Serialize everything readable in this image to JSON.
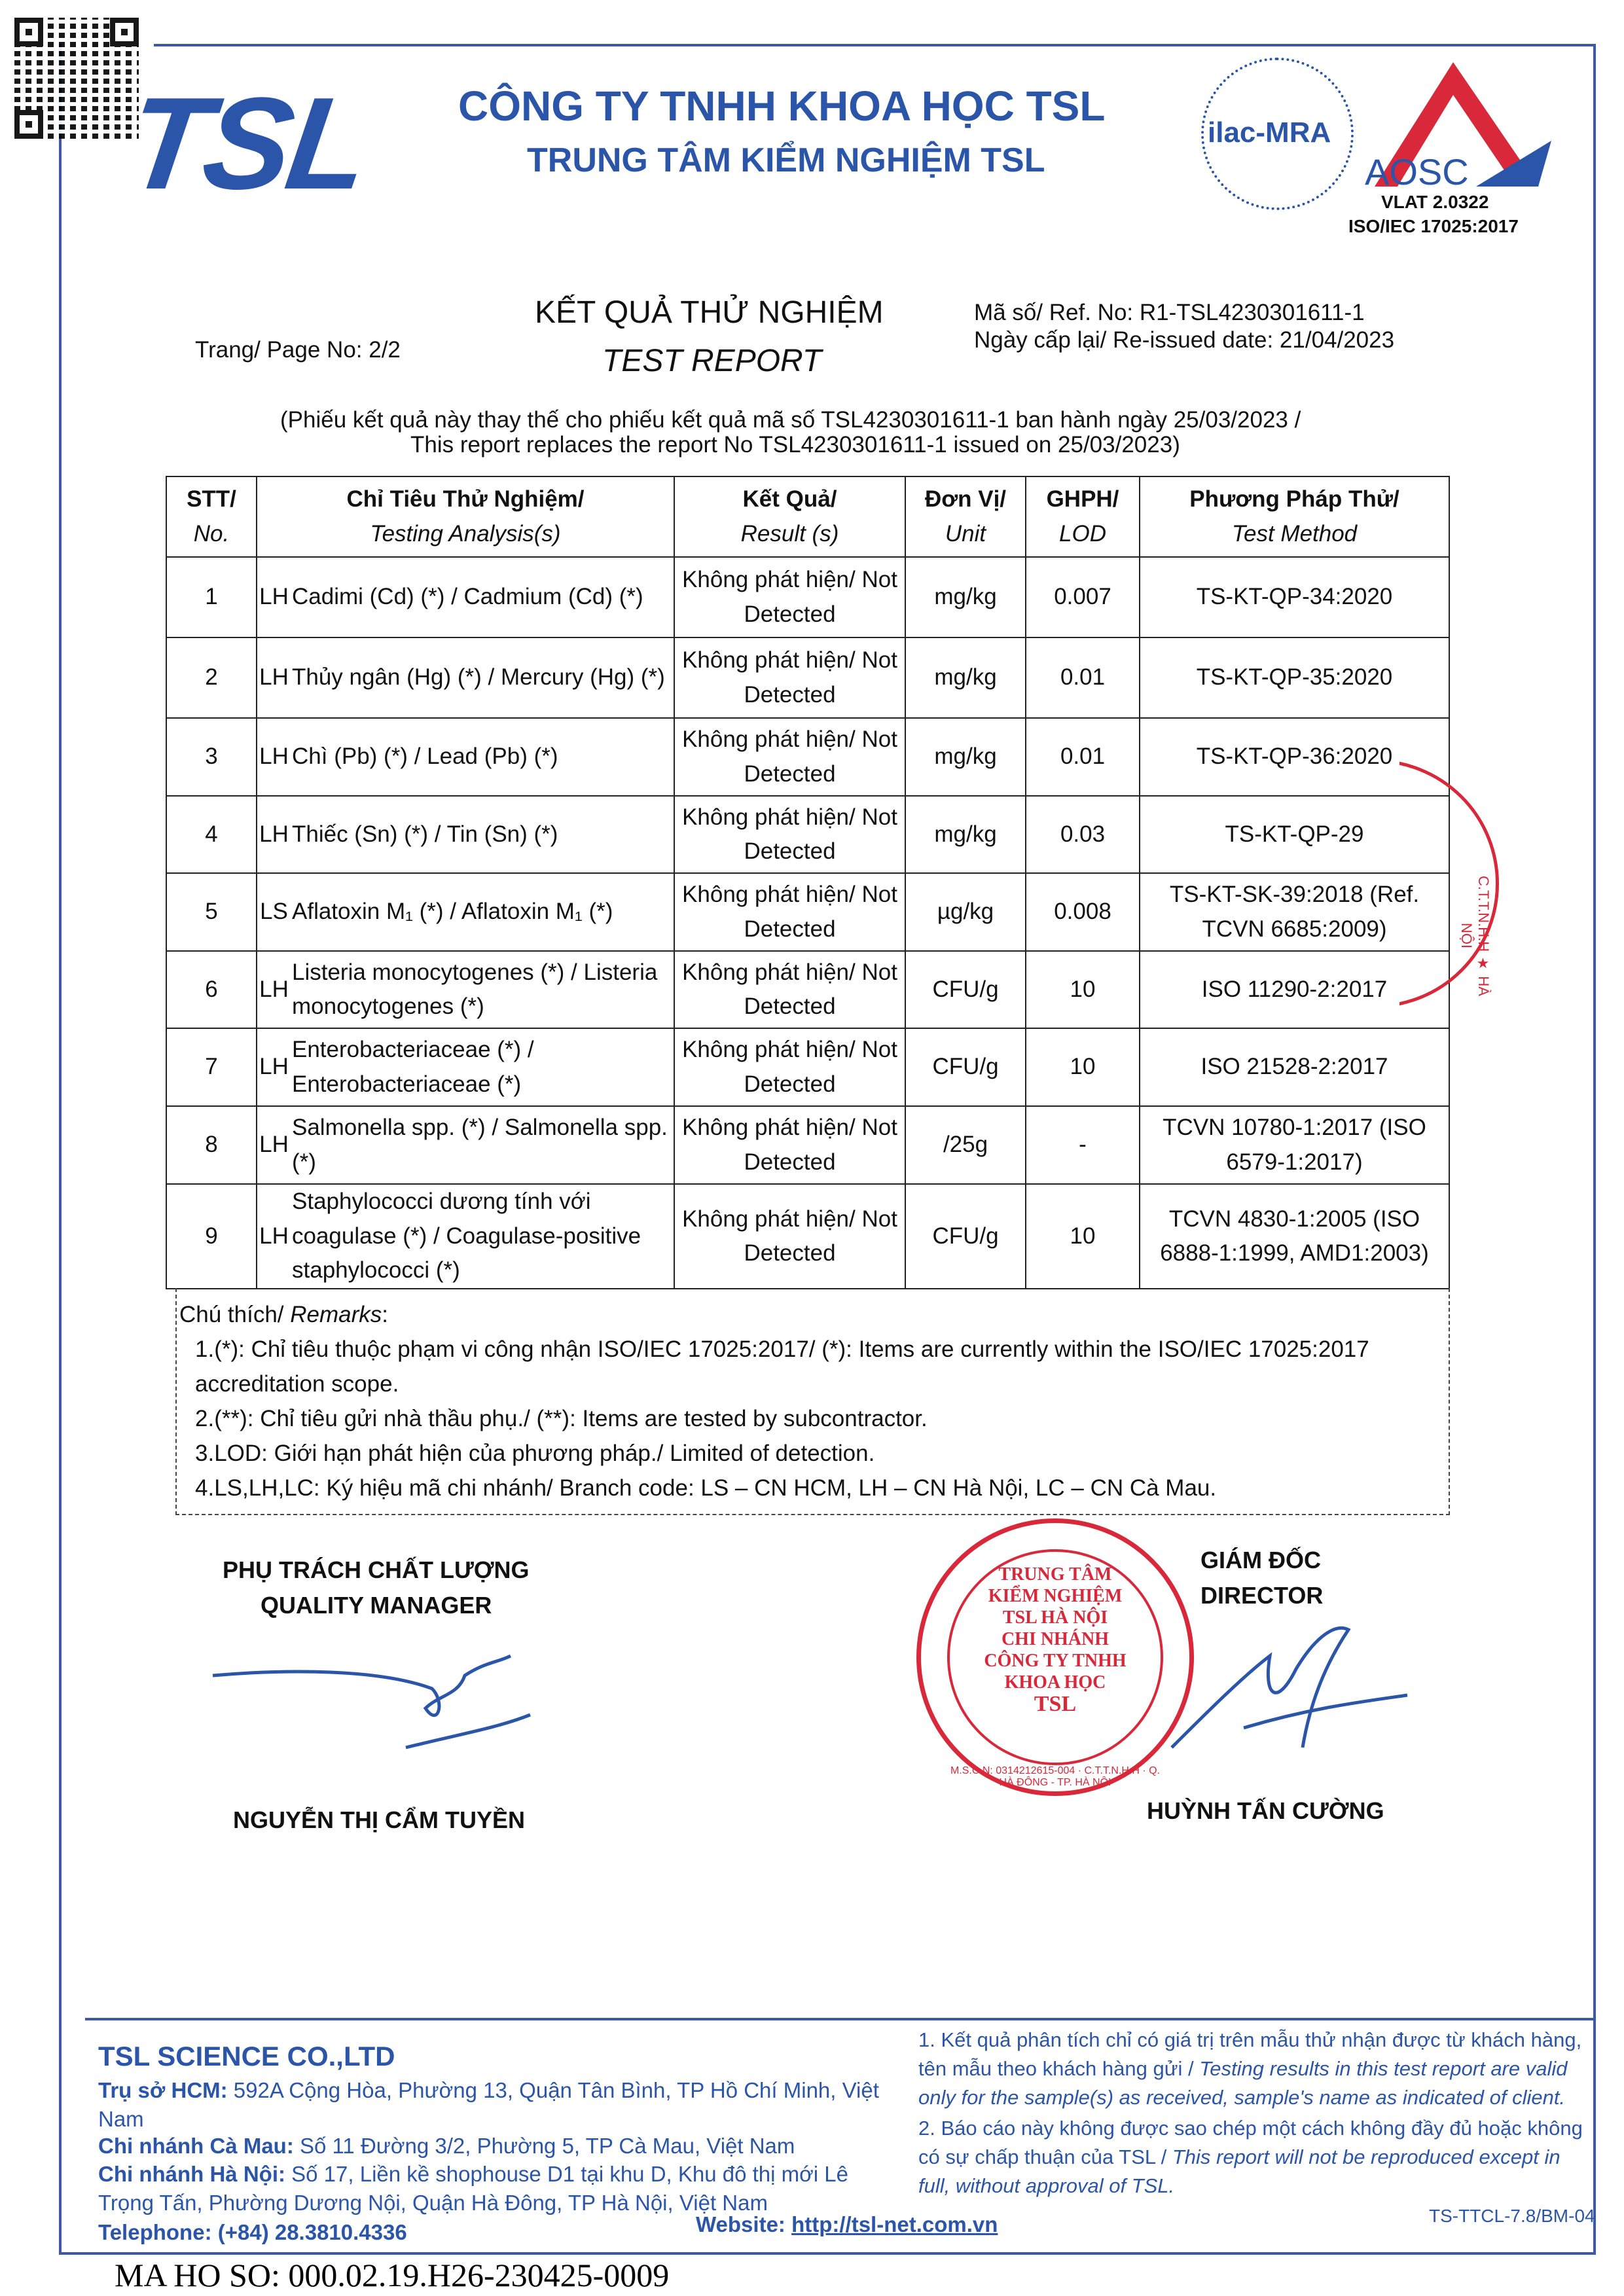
{
  "header": {
    "company": "CÔNG TY TNHH KHOA HỌC TSL",
    "center": "TRUNG TÂM KIỂM NGHIỆM TSL",
    "logo_text": "TSL",
    "ilac": "ilac-MRA",
    "aosc": "AOSC",
    "vlat": "VLAT 2.0322",
    "iso": "ISO/IEC 17025:2017",
    "brand_color": "#2a55a8"
  },
  "report": {
    "title_vi": "KẾT QUẢ THỬ NGHIỆM",
    "title_en": "TEST REPORT",
    "page_label": "Trang/ Page No: 2/2",
    "ref_label": "Mã số/ Ref. No: R1-TSL4230301611-1",
    "reissue": "Ngày cấp lại/ Re-issued date: 21/04/2023",
    "note_vi": "(Phiếu kết quả này thay thế cho phiếu kết quả mã số TSL4230301611-1 ban hành ngày 25/03/2023 /",
    "note_en": "This report replaces the report No TSL4230301611-1 issued on 25/03/2023)"
  },
  "table": {
    "headers": [
      {
        "vi": "STT/",
        "en": "No."
      },
      {
        "vi": "Chỉ Tiêu Thử Nghiệm/",
        "en": "Testing Analysis(s)"
      },
      {
        "vi": "Kết Quả/",
        "en": "Result (s)"
      },
      {
        "vi": "Đơn Vị/",
        "en": "Unit"
      },
      {
        "vi": "GHPH/",
        "en": "LOD"
      },
      {
        "vi": "Phương Pháp Thử/",
        "en": "Test Method"
      }
    ],
    "rows": [
      {
        "no": "1",
        "code": "LH",
        "analysis": "Cadimi (Cd) (*) / Cadmium (Cd) (*)",
        "result": "Không phát hiện/ Not Detected",
        "unit": "mg/kg",
        "lod": "0.007",
        "method": "TS-KT-QP-34:2020"
      },
      {
        "no": "2",
        "code": "LH",
        "analysis": "Thủy ngân (Hg) (*) / Mercury (Hg) (*)",
        "result": "Không phát hiện/ Not Detected",
        "unit": "mg/kg",
        "lod": "0.01",
        "method": "TS-KT-QP-35:2020"
      },
      {
        "no": "3",
        "code": "LH",
        "analysis": "Chì (Pb) (*) / Lead (Pb) (*)",
        "result": "Không phát hiện/ Not Detected",
        "unit": "mg/kg",
        "lod": "0.01",
        "method": "TS-KT-QP-36:2020"
      },
      {
        "no": "4",
        "code": "LH",
        "analysis": "Thiếc (Sn) (*) / Tin (Sn) (*)",
        "result": "Không phát hiện/ Not Detected",
        "unit": "mg/kg",
        "lod": "0.03",
        "method": "TS-KT-QP-29"
      },
      {
        "no": "5",
        "code": "LS",
        "analysis": "Aflatoxin M₁ (*) / Aflatoxin M₁ (*)",
        "result": "Không phát hiện/ Not Detected",
        "unit": "µg/kg",
        "lod": "0.008",
        "method": "TS-KT-SK-39:2018 (Ref. TCVN 6685:2009)"
      },
      {
        "no": "6",
        "code": "LH",
        "analysis": "Listeria monocytogenes (*) / Listeria monocytogenes (*)",
        "result": "Không phát hiện/ Not Detected",
        "unit": "CFU/g",
        "lod": "10",
        "method": "ISO 11290-2:2017"
      },
      {
        "no": "7",
        "code": "LH",
        "analysis": "Enterobacteriaceae (*) / Enterobacteriaceae (*)",
        "result": "Không phát hiện/ Not Detected",
        "unit": "CFU/g",
        "lod": "10",
        "method": "ISO 21528-2:2017"
      },
      {
        "no": "8",
        "code": "LH",
        "analysis": "Salmonella spp. (*) / Salmonella spp. (*)",
        "result": "Không phát hiện/ Not Detected",
        "unit": "/25g",
        "lod": "-",
        "method": "TCVN 10780-1:2017 (ISO 6579-1:2017)"
      },
      {
        "no": "9",
        "code": "LH",
        "analysis": "Staphylococci dương tính với coagulase (*) / Coagulase-positive staphylococci (*)",
        "result": "Không phát hiện/ Not Detected",
        "unit": "CFU/g",
        "lod": "10",
        "method": "TCVN 4830-1:2005 (ISO 6888-1:1999, AMD1:2003)"
      }
    ]
  },
  "remarks": {
    "title_vi": "Chú thích/ ",
    "title_en": "Remarks",
    "items": [
      "1.(*): Chỉ tiêu thuộc phạm vi công nhận ISO/IEC 17025:2017/ (*): Items are currently within the ISO/IEC 17025:2017 accreditation scope.",
      "2.(**): Chỉ tiêu gửi nhà thầu phụ./ (**): Items are tested by subcontractor.",
      "3.LOD: Giới hạn phát hiện của phương pháp./ Limited of detection.",
      "4.LS,LH,LC: Ký hiệu mã chi nhánh/ Branch code: LS – CN HCM, LH – CN Hà Nội, LC – CN Cà Mau."
    ]
  },
  "signatures": {
    "qm_vi": "PHỤ TRÁCH CHẤT LƯỢNG",
    "qm_en": "QUALITY MANAGER",
    "qm_name": "NGUYỄN THỊ CẨM TUYỀN",
    "dir_vi": "GIÁM ĐỐC",
    "dir_en": "DIRECTOR",
    "dir_name": "HUỲNH TẤN CƯỜNG",
    "stamp_lines": [
      "TRUNG TÂM",
      "KIỂM NGHIỆM",
      "TSL HÀ NỘI",
      "CHI NHÁNH",
      "CÔNG TY TNHH",
      "KHOA HỌC",
      "TSL"
    ],
    "stamp_ring": "M.S.C.N: 0314212615-004 · C.T.T.N.H.H · Q. HÀ ĐÔNG - TP. HÀ NỘI",
    "side_stamp": "C.T.T.N.H.H ★ HÀ NỘI",
    "stamp_color": "#d8283a"
  },
  "footer": {
    "company": "TSL SCIENCE CO.,LTD",
    "hcm_label": "Trụ sở HCM:",
    "hcm": " 592A Cộng Hòa, Phường 13, Quận Tân Bình, TP Hồ Chí Minh, Việt Nam",
    "cm_label": "Chi nhánh Cà Mau:",
    "cm": " Số 11 Đường 3/2, Phường 5, TP Cà Mau, Việt Nam",
    "hn_label": "Chi nhánh Hà Nội:",
    "hn": " Số 17, Liền kề shophouse D1 tại khu D, Khu đô thị mới Lê Trọng Tấn, Phường Dương Nội, Quận Hà Đông, TP Hà Nội, Việt Nam",
    "tel": "Telephone: (+84) 28.3810.4336",
    "website_label": "Website: ",
    "website": "http://tsl-net.com.vn",
    "note1_vi": "1. Kết quả phân tích chỉ có giá trị trên mẫu thử nhận được từ khách hàng, tên mẫu theo khách hàng gửi / ",
    "note1_en": "Testing results in this test report are valid only for the sample(s) as received, sample's name as indicated of client.",
    "note2_vi": "2. Báo cáo này không được sao chép một cách không đầy đủ hoặc không có sự chấp thuận của TSL / ",
    "note2_en": "This report will not be reproduced except in full, without approval of TSL.",
    "form_code": "TS-TTCL-7.8/BM-04",
    "dossier": "MA HO SO: 000.02.19.H26-230425-0009"
  }
}
